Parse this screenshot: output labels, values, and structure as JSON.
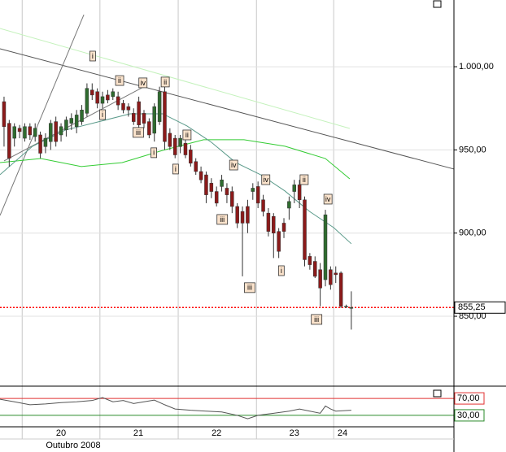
{
  "chart_data": {
    "type": "candlestick",
    "xlim": [
      -0.78,
      86.8
    ],
    "ylim": [
      808,
      1040.1
    ],
    "yticks": [
      {
        "value": 1000,
        "label": "1.000,00"
      },
      {
        "value": 950,
        "label": "950,00"
      },
      {
        "value": 900,
        "label": "900,00"
      },
      {
        "value": 850,
        "label": "850,00"
      }
    ],
    "xticks": [
      {
        "value": 11,
        "label": "20"
      },
      {
        "value": 25.9,
        "label": "21"
      },
      {
        "value": 41,
        "label": "22"
      },
      {
        "value": 56,
        "label": "23"
      },
      {
        "value": 65.3,
        "label": "24"
      }
    ],
    "day_separators": [
      3.5,
      18.5,
      33.6,
      48.7,
      63.6
    ],
    "x_axis_label": "Outubro 2008",
    "grid": true,
    "up_color": "#2f6b2f",
    "down_color": "#8b1a1a",
    "candles": {
      "x": [
        0,
        1,
        2,
        3,
        4,
        5,
        6,
        7,
        8,
        9,
        10,
        11,
        12,
        13,
        14,
        15,
        16,
        17,
        18,
        19,
        20,
        21,
        22,
        23,
        24,
        25,
        26,
        27,
        28,
        29,
        30,
        31,
        32,
        33,
        34,
        35,
        36,
        37,
        38,
        39,
        40,
        41,
        42,
        43,
        44,
        45,
        46,
        47,
        48,
        49,
        50,
        51,
        52,
        53,
        54,
        55,
        56,
        57,
        58,
        59,
        60,
        61,
        62,
        63,
        64,
        65,
        66,
        67
      ],
      "open": [
        979,
        966,
        957,
        963,
        957,
        964,
        958,
        959,
        952,
        955,
        967,
        959,
        962,
        966,
        964,
        967,
        972,
        986,
        985,
        978,
        983,
        982,
        982,
        978,
        976,
        972,
        979,
        972,
        967,
        960,
        967,
        985,
        960,
        957,
        952,
        954,
        950,
        943,
        937,
        935,
        930,
        925,
        928,
        927,
        925,
        916,
        913,
        916,
        925,
        928,
        920,
        912,
        910,
        901,
        906,
        915,
        925,
        929,
        920,
        886,
        883,
        878,
        872,
        878,
        876,
        876,
        856,
        855
      ],
      "high": [
        982,
        968,
        966,
        965,
        966,
        966,
        966,
        961,
        960,
        968,
        970,
        966,
        970,
        972,
        974,
        977,
        990,
        990,
        987,
        985,
        986,
        987,
        985,
        980,
        978,
        975,
        982,
        974,
        969,
        978,
        988,
        988,
        963,
        959,
        959,
        958,
        953,
        945,
        940,
        937,
        933,
        928,
        935,
        930,
        928,
        918,
        916,
        920,
        930,
        931,
        923,
        915,
        912,
        903,
        909,
        922,
        932,
        932,
        922,
        888,
        886,
        882,
        914,
        880,
        880,
        877,
        857,
        865
      ],
      "low": [
        952,
        940,
        952,
        957,
        955,
        956,
        955,
        945,
        948,
        950,
        952,
        955,
        958,
        962,
        960,
        965,
        970,
        980,
        975,
        975,
        978,
        980,
        974,
        972,
        970,
        965,
        960,
        963,
        957,
        955,
        965,
        950,
        950,
        945,
        948,
        945,
        940,
        935,
        930,
        918,
        921,
        916,
        925,
        918,
        912,
        903,
        874,
        900,
        920,
        915,
        910,
        898,
        885,
        885,
        897,
        908,
        918,
        915,
        880,
        878,
        873,
        856,
        868,
        866,
        870,
        855,
        855,
        842
      ],
      "close": [
        964,
        945,
        964,
        961,
        964,
        959,
        963,
        948,
        957,
        966,
        955,
        964,
        968,
        969,
        971,
        974,
        987,
        983,
        978,
        982,
        980,
        985,
        977,
        974,
        974,
        967,
        965,
        966,
        959,
        976,
        985,
        955,
        952,
        947,
        957,
        947,
        942,
        937,
        932,
        923,
        925,
        918,
        932,
        923,
        916,
        906,
        906,
        906,
        927,
        918,
        913,
        901,
        900,
        889,
        901,
        919,
        929,
        920,
        884,
        881,
        874,
        867,
        911,
        869,
        875,
        856,
        856,
        855.25
      ]
    },
    "last_price": {
      "value": 855.25,
      "label": "855,25",
      "color": "#ff0000"
    },
    "lines": [
      {
        "color": "#c4f2bc",
        "x": [
          -0.78,
          66.7
        ],
        "y": [
          1023,
          962.9
        ]
      },
      {
        "color": "#555555",
        "x": [
          -0.78,
          86.8
        ],
        "y": [
          1010.8,
          938.5
        ]
      },
      {
        "color": "#777777",
        "x": [
          -0.78,
          15.4
        ],
        "y": [
          910.6,
          1031.3
        ]
      },
      {
        "color": "#777777",
        "x": [
          0,
          27.5
        ],
        "y": [
          943.4,
          988.8
        ]
      },
      {
        "color": "#33cc33",
        "x": [
          -0.78,
          7.1,
          14.9,
          22.8,
          30.6,
          38.5,
          46.3,
          54.2,
          62,
          66.7
        ],
        "y": [
          942.4,
          944.8,
          940,
          942.4,
          949.7,
          956.1,
          956.1,
          952.2,
          944.8,
          932.6
        ]
      },
      {
        "color": "#5a9a8a",
        "x": [
          -0.78,
          5.5,
          11.8,
          18.1,
          24.3,
          30.6,
          35.3,
          40,
          44.7,
          49.5,
          54.2,
          58.9,
          63.6,
          67
        ],
        "y": [
          935.1,
          952.2,
          961.9,
          966.8,
          971.7,
          971.7,
          964.4,
          954.6,
          942.4,
          935.1,
          925.3,
          913.1,
          903.3,
          893.6
        ]
      }
    ],
    "annotations": [
      {
        "label": "i",
        "x": 17.1,
        "y": 1006.4
      },
      {
        "label": "ii",
        "x": 22.3,
        "y": 991.7
      },
      {
        "label": "iv",
        "x": 26.8,
        "y": 990.3
      },
      {
        "label": "ii",
        "x": 31.1,
        "y": 990.8
      },
      {
        "label": "i",
        "x": 19,
        "y": 971.2
      },
      {
        "label": "iii",
        "x": 25.9,
        "y": 960.5
      },
      {
        "label": "i",
        "x": 28.9,
        "y": 948.3
      },
      {
        "label": "ii",
        "x": 35.3,
        "y": 959
      },
      {
        "label": "i",
        "x": 33.1,
        "y": 938.5
      },
      {
        "label": "iv",
        "x": 44.3,
        "y": 940.9
      },
      {
        "label": "iii",
        "x": 42.1,
        "y": 908.2
      },
      {
        "label": "iv",
        "x": 50.5,
        "y": 932.1
      },
      {
        "label": "ii",
        "x": 57.9,
        "y": 932.1
      },
      {
        "label": "iv",
        "x": 62.5,
        "y": 920.4
      },
      {
        "label": "i",
        "x": 53.5,
        "y": 877.4
      },
      {
        "label": "iii",
        "x": 47.4,
        "y": 867.2
      },
      {
        "label": "iii",
        "x": 60.3,
        "y": 848.1
      }
    ],
    "indicator": {
      "type": "line",
      "ylim": [
        3,
        97
      ],
      "color": "#555555",
      "x": [
        -0.78,
        2,
        5,
        8,
        11,
        14,
        17,
        19,
        21,
        23,
        25,
        27,
        29,
        31,
        33,
        36,
        39,
        42,
        45,
        47,
        49,
        52,
        55,
        57,
        59,
        61,
        62,
        63,
        64,
        67
      ],
      "values": [
        68,
        62,
        55,
        57,
        60,
        62,
        65,
        72,
        62,
        65,
        58,
        62,
        66,
        55,
        45,
        42,
        40,
        38,
        30,
        22,
        30,
        35,
        40,
        45,
        40,
        35,
        52,
        45,
        40,
        42
      ],
      "levels": [
        {
          "value": 70,
          "label": "70,00",
          "color": "#e03030"
        },
        {
          "value": 30,
          "label": "30,00",
          "color": "#2a8a2a"
        }
      ]
    }
  }
}
